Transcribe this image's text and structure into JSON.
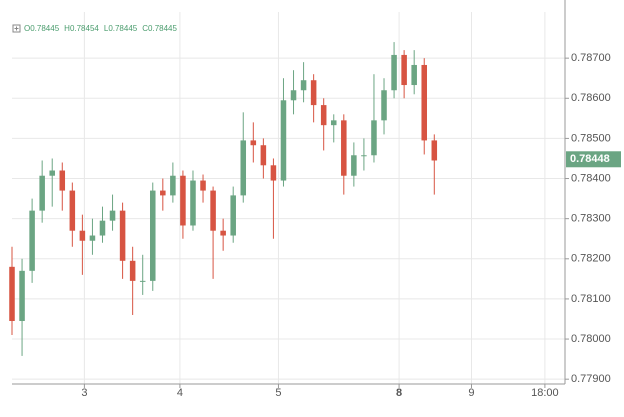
{
  "chart_data": {
    "type": "candlestick",
    "ohlc_legend": [
      {
        "label": "O",
        "value": 0.78445
      },
      {
        "label": "H",
        "value": 0.78454
      },
      {
        "label": "L",
        "value": 0.78445
      },
      {
        "label": "C",
        "value": 0.78445
      }
    ],
    "up_color": "#6ba583",
    "down_color": "#d75442",
    "x": [
      0,
      1,
      2,
      3,
      4,
      5,
      6,
      7,
      8,
      9,
      10,
      11,
      12,
      13,
      14,
      15,
      16,
      17,
      18,
      19,
      20,
      21,
      22,
      23,
      24,
      25,
      26,
      27,
      28,
      29,
      30,
      31,
      32,
      33,
      34,
      35,
      36,
      37,
      38,
      39,
      40,
      41,
      42
    ],
    "open": [
      0.7818,
      0.78045,
      0.7817,
      0.7832,
      0.78407,
      0.7842,
      0.7837,
      0.7827,
      0.78245,
      0.78258,
      0.78295,
      0.7832,
      0.78195,
      0.78145,
      0.78145,
      0.7837,
      0.78358,
      0.78407,
      0.78283,
      0.78395,
      0.7837,
      0.7827,
      0.78258,
      0.78358,
      0.78495,
      0.78483,
      0.78433,
      0.78395,
      0.78595,
      0.7862,
      0.78645,
      0.78583,
      0.78533,
      0.78545,
      0.78407,
      0.78458,
      0.78458,
      0.78545,
      0.7862,
      0.78708,
      0.78633,
      0.78683,
      0.78495
    ],
    "high": [
      0.7823,
      0.782,
      0.7835,
      0.78445,
      0.7845,
      0.7844,
      0.7839,
      0.7831,
      0.783,
      0.7833,
      0.7836,
      0.7834,
      0.7823,
      0.7821,
      0.7839,
      0.784,
      0.7844,
      0.7842,
      0.7842,
      0.7841,
      0.7838,
      0.783,
      0.7838,
      0.78565,
      0.7854,
      0.785,
      0.7845,
      0.7865,
      0.7867,
      0.7869,
      0.7866,
      0.786,
      0.7856,
      0.7856,
      0.7849,
      0.785,
      0.7866,
      0.7865,
      0.7874,
      0.7872,
      0.7872,
      0.787,
      0.7851
    ],
    "low": [
      0.7801,
      0.77958,
      0.7814,
      0.7829,
      0.7833,
      0.7832,
      0.7823,
      0.7816,
      0.7821,
      0.7824,
      0.7827,
      0.7815,
      0.7806,
      0.7811,
      0.7812,
      0.7832,
      0.7834,
      0.7825,
      0.7827,
      0.7834,
      0.7815,
      0.7822,
      0.7824,
      0.7834,
      0.7844,
      0.784,
      0.7825,
      0.7838,
      0.7856,
      0.7859,
      0.7854,
      0.7847,
      0.7849,
      0.7836,
      0.7838,
      0.7842,
      0.7844,
      0.7851,
      0.786,
      0.786,
      0.7861,
      0.7846,
      0.7836
    ],
    "close": [
      0.78045,
      0.7817,
      0.7832,
      0.78407,
      0.7842,
      0.7837,
      0.7827,
      0.78245,
      0.78258,
      0.78295,
      0.7832,
      0.78195,
      0.78145,
      0.78145,
      0.7837,
      0.78358,
      0.78407,
      0.78283,
      0.78395,
      0.7837,
      0.7827,
      0.78258,
      0.78358,
      0.78495,
      0.78483,
      0.78433,
      0.78395,
      0.78595,
      0.7862,
      0.78645,
      0.78583,
      0.78533,
      0.78545,
      0.78407,
      0.78458,
      0.78458,
      0.78545,
      0.7862,
      0.78708,
      0.78633,
      0.78683,
      0.78495,
      0.78445
    ],
    "last_price": 0.78448,
    "xlim": [
      0,
      55
    ],
    "xticks": [
      {
        "value": 7.2,
        "label": "3"
      },
      {
        "value": 16.7,
        "label": "4"
      },
      {
        "value": 26.5,
        "label": "5"
      },
      {
        "value": 38.5,
        "label": "8"
      },
      {
        "value": 45.7,
        "label": "9"
      },
      {
        "value": 53,
        "label": "18:00"
      }
    ],
    "ylim": [
      0.77888,
      0.78815
    ],
    "yticks": [
      {
        "value": 0.779,
        "label": "0.77900"
      },
      {
        "value": 0.78,
        "label": "0.78000"
      },
      {
        "value": 0.781,
        "label": "0.78100"
      },
      {
        "value": 0.782,
        "label": "0.78200"
      },
      {
        "value": 0.783,
        "label": "0.78300"
      },
      {
        "value": 0.784,
        "label": "0.78400"
      },
      {
        "value": 0.785,
        "label": "0.78500"
      },
      {
        "value": 0.786,
        "label": "0.78600"
      },
      {
        "value": 0.787,
        "label": "0.78700"
      }
    ],
    "grid": true
  }
}
